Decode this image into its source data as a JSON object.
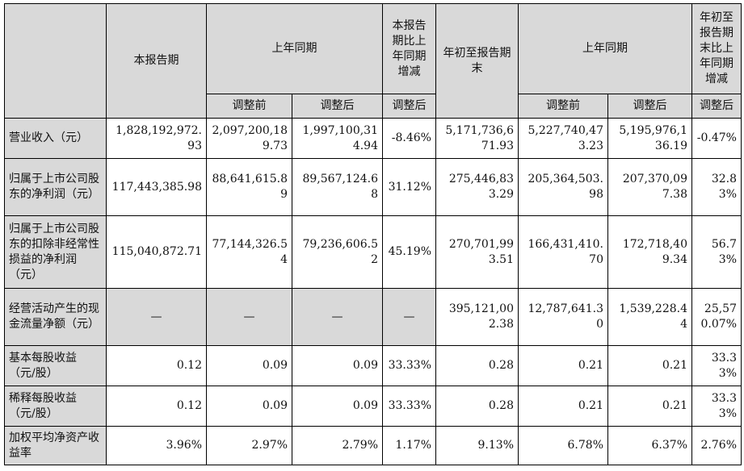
{
  "headers": {
    "current_period": "本报告期",
    "prior_same_period": "上年同期",
    "yoy_change": "本报告期比上年同期增减",
    "ytd": "年初至报告期末",
    "prior_same_period_ytd": "上年同期",
    "ytd_yoy_change": "年初至报告期末比上年同期增减",
    "before_adjust": "调整前",
    "after_adjust": "调整后",
    "adjusted": "调整后",
    "before_adjust_ytd": "调整前",
    "after_adjust_ytd": "调整后",
    "adjusted_ytd": "调整后"
  },
  "rows": [
    {
      "label": "营业收入（元）",
      "values": [
        "1,828,192,972.93",
        "2,097,200,189.73",
        "1,997,100,314.94",
        "-8.46%",
        "5,171,736,671.93",
        "5,227,740,473.23",
        "5,195,976,136.19",
        "-0.47%"
      ]
    },
    {
      "label": "归属于上市公司股东的净利润（元）",
      "values": [
        "117,443,385.98",
        "88,641,615.89",
        "89,567,124.68",
        "31.12%",
        "275,446,833.29",
        "205,364,503.98",
        "207,370,097.38",
        "32.83%"
      ]
    },
    {
      "label": "归属于上市公司股东的扣除非经常性损益的净利润（元）",
      "values": [
        "115,040,872.71",
        "77,144,326.54",
        "79,236,606.52",
        "45.19%",
        "270,701,993.51",
        "166,431,410.70",
        "172,718,409.34",
        "56.73%"
      ]
    },
    {
      "label": "经营活动产生的现金流量净额（元）",
      "values": [
        "—",
        "—",
        "—",
        "—",
        "395,121,002.38",
        "12,787,641.30",
        "1,539,228.44",
        "25,570.07%"
      ]
    },
    {
      "label": "基本每股收益（元/股）",
      "values": [
        "0.12",
        "0.09",
        "0.09",
        "33.33%",
        "0.28",
        "0.21",
        "0.21",
        "33.33%"
      ]
    },
    {
      "label": "稀释每股收益（元/股）",
      "values": [
        "0.12",
        "0.09",
        "0.09",
        "33.33%",
        "0.28",
        "0.21",
        "0.21",
        "33.33%"
      ]
    },
    {
      "label": "加权平均净资产收益率",
      "values": [
        "3.96%",
        "2.97%",
        "2.79%",
        "1.17%",
        "9.13%",
        "6.78%",
        "6.37%",
        "2.76%"
      ]
    }
  ]
}
